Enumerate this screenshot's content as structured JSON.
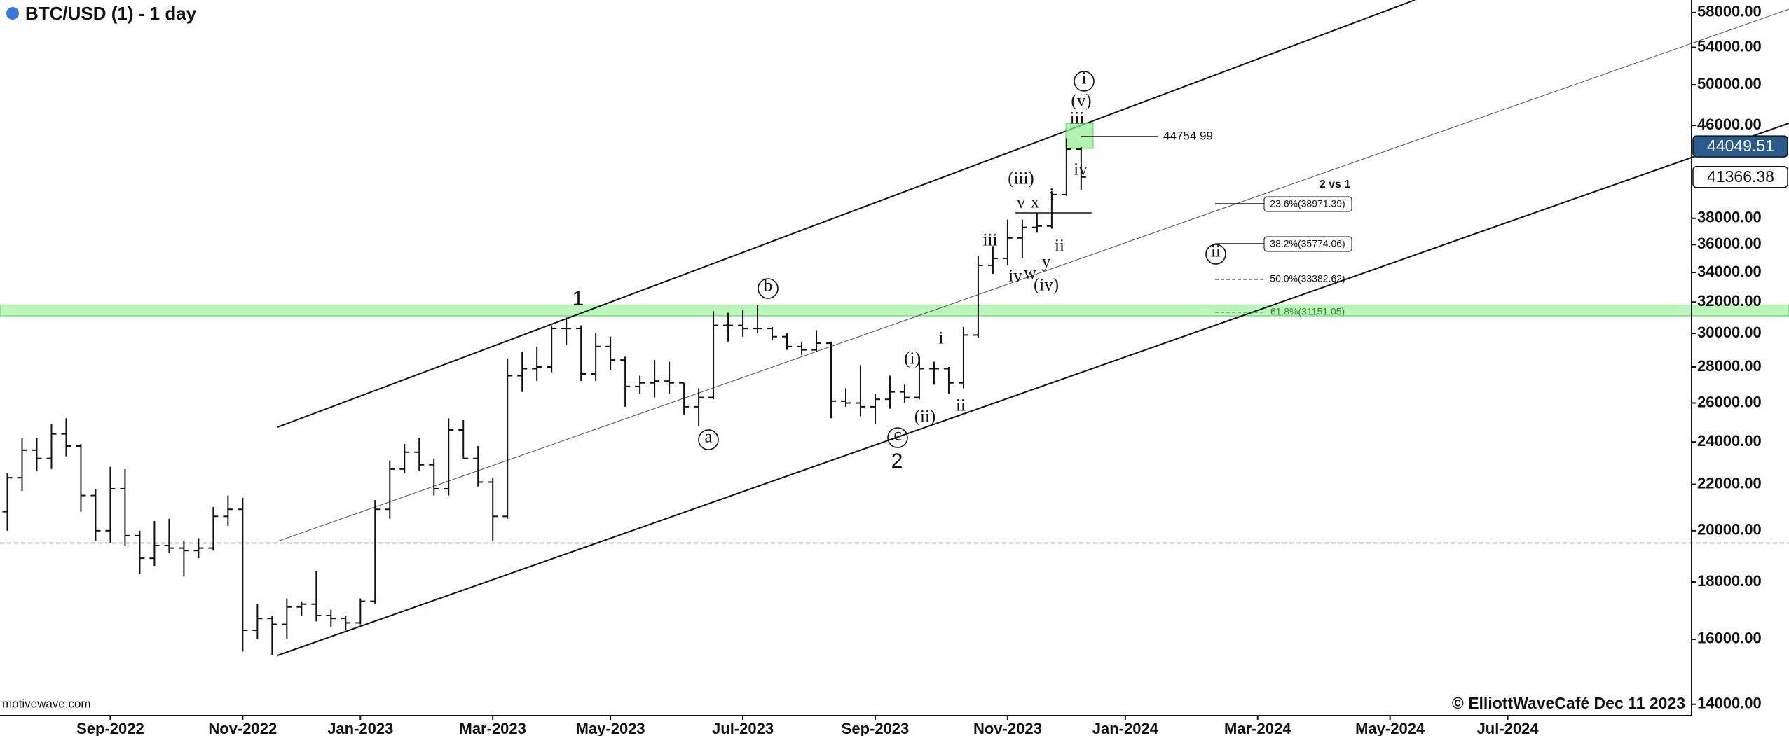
{
  "chart_data": {
    "type": "ohlc",
    "title": "BTC/USD (1) - 1 day",
    "source": "motivewave.com",
    "copyright": "© ElliottWaveCafé Dec 11 2023",
    "log_scale": true,
    "color": "#111111",
    "ylim": [
      13676,
      59513
    ],
    "yticks": [
      {
        "value": 14000,
        "label": "14000.00"
      },
      {
        "value": 16000,
        "label": "16000.00"
      },
      {
        "value": 18000,
        "label": "18000.00"
      },
      {
        "value": 20000,
        "label": "20000.00"
      },
      {
        "value": 22000,
        "label": "22000.00"
      },
      {
        "value": 24000,
        "label": "24000.00"
      },
      {
        "value": 26000,
        "label": "26000.00"
      },
      {
        "value": 28000,
        "label": "28000.00"
      },
      {
        "value": 30000,
        "label": "30000.00"
      },
      {
        "value": 32000,
        "label": "32000.00"
      },
      {
        "value": 34000,
        "label": "34000.00"
      },
      {
        "value": 36000,
        "label": "36000.00"
      },
      {
        "value": 38000,
        "label": "38000.00"
      },
      {
        "value": 46000,
        "label": "46000.00"
      },
      {
        "value": 50000,
        "label": "50000.00"
      },
      {
        "value": 54000,
        "label": "54000.00"
      },
      {
        "value": 58000,
        "label": "58000.00"
      }
    ],
    "categories": [
      null,
      null,
      null,
      null,
      null,
      null,
      null,
      "Sep-2022",
      null,
      null,
      null,
      null,
      null,
      null,
      null,
      null,
      "Nov-2022",
      null,
      null,
      null,
      null,
      null,
      null,
      null,
      "Jan-2023",
      null,
      null,
      null,
      null,
      null,
      null,
      null,
      null,
      "Mar-2023",
      null,
      null,
      null,
      null,
      null,
      null,
      null,
      "May-2023",
      null,
      null,
      null,
      null,
      null,
      null,
      null,
      null,
      "Jul-2023",
      null,
      null,
      null,
      null,
      null,
      null,
      null,
      null,
      "Sep-2023",
      null,
      null,
      null,
      null,
      null,
      null,
      null,
      null,
      "Nov-2023",
      null,
      null,
      null,
      null,
      null,
      null,
      null,
      "Jan-2024",
      null,
      null,
      null,
      null,
      null,
      null,
      null,
      null,
      "Mar-2024",
      null,
      null,
      null,
      null,
      null,
      null,
      null,
      null,
      "May-2024",
      null,
      null,
      null,
      null,
      null,
      null,
      null,
      "Jul-2024",
      null,
      null,
      null,
      null,
      null,
      null,
      null,
      null,
      null,
      null,
      null,
      null
    ],
    "values": [
      [
        20800,
        22500,
        20000,
        22300
      ],
      [
        22300,
        24200,
        21700,
        23600
      ],
      [
        23600,
        24200,
        22600,
        23200
      ],
      [
        23200,
        24900,
        22700,
        24400
      ],
      [
        24400,
        25200,
        23300,
        23800
      ],
      [
        23800,
        23900,
        20800,
        21500
      ],
      [
        21500,
        21800,
        19600,
        20000
      ],
      [
        20000,
        22800,
        19500,
        21800
      ],
      [
        21800,
        22700,
        19400,
        19800
      ],
      [
        19800,
        20000,
        18300,
        18900
      ],
      [
        18900,
        20400,
        18600,
        19400
      ],
      [
        19400,
        20500,
        19100,
        19300
      ],
      [
        19300,
        19600,
        18200,
        19200
      ],
      [
        19200,
        19700,
        18900,
        19300
      ],
      [
        19300,
        21000,
        19200,
        20600
      ],
      [
        20600,
        21500,
        20200,
        20900
      ],
      [
        20900,
        21400,
        15600,
        16300
      ],
      [
        16300,
        17200,
        16000,
        16700
      ],
      [
        16700,
        16800,
        15500,
        16500
      ],
      [
        16500,
        17400,
        16000,
        17100
      ],
      [
        17100,
        17300,
        16800,
        17200
      ],
      [
        17200,
        18400,
        16600,
        16800
      ],
      [
        16800,
        17000,
        16400,
        16700
      ],
      [
        16700,
        16800,
        16300,
        16550
      ],
      [
        16550,
        17400,
        16500,
        17300
      ],
      [
        17300,
        21300,
        17200,
        20900
      ],
      [
        20900,
        23100,
        20500,
        22700
      ],
      [
        22700,
        23900,
        22500,
        23500
      ],
      [
        23500,
        24200,
        22600,
        22900
      ],
      [
        22900,
        23200,
        21500,
        21800
      ],
      [
        21800,
        25200,
        21500,
        24600
      ],
      [
        24600,
        25100,
        23200,
        23200
      ],
      [
        23200,
        23800,
        21900,
        22100
      ],
      [
        22100,
        22300,
        19600,
        20600
      ],
      [
        20600,
        28500,
        20500,
        27500
      ],
      [
        27500,
        28900,
        26600,
        27900
      ],
      [
        27900,
        29200,
        27200,
        28000
      ],
      [
        28000,
        30500,
        27700,
        30300
      ],
      [
        30300,
        31000,
        29300,
        30300
      ],
      [
        30300,
        30500,
        27200,
        27600
      ],
      [
        27600,
        30000,
        27200,
        29200
      ],
      [
        29200,
        29800,
        27800,
        28400
      ],
      [
        28400,
        28600,
        25800,
        26900
      ],
      [
        26900,
        27500,
        26500,
        27100
      ],
      [
        27100,
        28400,
        26300,
        27200
      ],
      [
        27200,
        28300,
        26500,
        27100
      ],
      [
        27100,
        27100,
        25400,
        25800
      ],
      [
        25800,
        26800,
        24800,
        26300
      ],
      [
        26300,
        31400,
        26200,
        30500
      ],
      [
        30500,
        31300,
        29500,
        30500
      ],
      [
        30500,
        31500,
        29800,
        30300
      ],
      [
        30300,
        31800,
        30000,
        30300
      ],
      [
        30300,
        30400,
        29600,
        29800
      ],
      [
        29800,
        30000,
        29000,
        29200
      ],
      [
        29200,
        29500,
        28700,
        29000
      ],
      [
        29000,
        30200,
        28900,
        29400
      ],
      [
        29400,
        29500,
        25200,
        26100
      ],
      [
        26100,
        26800,
        25800,
        26000
      ],
      [
        26000,
        28100,
        25300,
        25800
      ],
      [
        25800,
        26500,
        24900,
        26200
      ],
      [
        26200,
        27500,
        25700,
        26600
      ],
      [
        26600,
        27000,
        26000,
        26300
      ],
      [
        26300,
        28600,
        26200,
        27900
      ],
      [
        27900,
        28300,
        27000,
        27900
      ],
      [
        27900,
        28000,
        26500,
        27100
      ],
      [
        27100,
        30400,
        26800,
        29900
      ],
      [
        29900,
        35200,
        29700,
        34500
      ],
      [
        34500,
        35900,
        33900,
        35000
      ],
      [
        35000,
        37900,
        34500,
        36500
      ],
      [
        36500,
        37900,
        35000,
        37300
      ],
      [
        37300,
        38400,
        36900,
        37400
      ],
      [
        37400,
        40200,
        37200,
        39900
      ],
      [
        39900,
        44800,
        39800,
        43800
      ],
      [
        43800,
        44000,
        40300,
        41366.38
      ],
      null,
      null,
      null,
      null,
      null,
      null,
      null,
      null,
      null,
      null,
      null,
      null,
      null,
      null,
      null,
      null,
      null,
      null,
      null,
      null,
      null,
      null,
      null,
      null,
      null,
      null,
      null,
      null,
      null,
      null,
      null,
      null,
      null,
      null,
      null,
      null,
      null,
      null,
      null,
      null,
      null
    ],
    "support_band": [
      31100,
      31800
    ],
    "support_band_color": "#90ee90",
    "dashed_level": 19500,
    "price_markers": [
      {
        "value": 44049.51,
        "color": "#2b5a8c",
        "text_color": "#ffffff"
      },
      {
        "value": 41366.38,
        "color": "#ffffff",
        "text_color": "#111111"
      }
    ],
    "target_price": 44754.99,
    "note": "2 vs 1",
    "fib_levels": [
      "23.6%(38971.39)",
      "38.2%(35774.06)",
      "50.0%(33382.62)",
      "61.8%(31151.05)"
    ],
    "annotations": [
      "1",
      "2",
      "b",
      "a",
      "c",
      "(i)",
      "(ii)",
      "i",
      "ii",
      "iii",
      "iv",
      "w",
      "(iv)",
      "y",
      "ii",
      "(iii)",
      "v",
      "x",
      "i",
      "iv",
      "iii",
      "(v)",
      "i",
      "ii"
    ]
  }
}
